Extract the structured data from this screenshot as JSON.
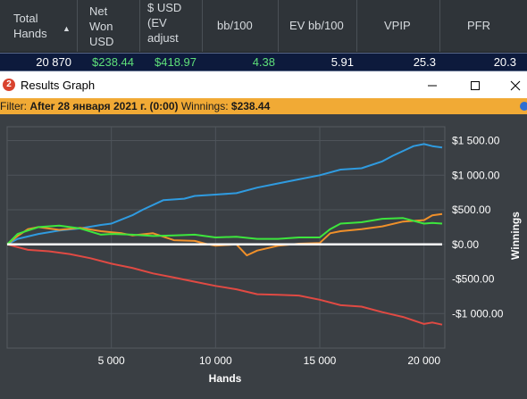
{
  "stats_table": {
    "headers": [
      "Total\nHands",
      "Net\nWon\nUSD",
      "$ USD\n(EV\nadjust",
      "bb/100",
      "EV bb/100",
      "VPIP",
      "PFR"
    ],
    "row": [
      "20 870",
      "$238.44",
      "$418.97",
      "4.38",
      "5.91",
      "25.3",
      "20.3"
    ],
    "colors": {
      "header_text": "#d7dbdf",
      "positive": "#5fe07a",
      "neutral": "#ffffff"
    }
  },
  "window": {
    "title": "Results Graph",
    "icon": "app-logo-icon",
    "buttons": [
      "minimize-icon",
      "maximize-icon",
      "close-icon"
    ]
  },
  "filter_bar": {
    "prefix": "Filter:",
    "filter": "After 28 января 2021 г. (0:00)",
    "winnings_label": "Winnings:",
    "winnings_value": "$238.44"
  },
  "chart_data": {
    "type": "line",
    "xlabel": "Hands",
    "ylabel": "Winnings",
    "xlim": [
      0,
      21000
    ],
    "ylim": [
      -1500,
      1700
    ],
    "x_ticks": [
      5000,
      10000,
      15000,
      20000
    ],
    "x_tick_labels": [
      "5 000",
      "10 000",
      "15 000",
      "20 000"
    ],
    "y_ticks": [
      1500,
      1000,
      500,
      0,
      -500,
      -1000
    ],
    "y_tick_labels": [
      "$1 500.00",
      "$1 000.00",
      "$500.00",
      "$0.00",
      "-$500.00",
      "-$1 000.00"
    ],
    "grid": true,
    "series": [
      {
        "color": "#2f9be0",
        "x": [
          0,
          500,
          1500,
          2500,
          3500,
          4500,
          5000,
          6000,
          6500,
          7500,
          8500,
          9000,
          10000,
          11000,
          12000,
          13000,
          14000,
          15000,
          16000,
          17000,
          18000,
          18500,
          19000,
          19500,
          20000,
          20400,
          20870
        ],
        "y": [
          0,
          80,
          150,
          200,
          230,
          280,
          300,
          420,
          500,
          640,
          660,
          700,
          720,
          740,
          820,
          880,
          940,
          1000,
          1080,
          1100,
          1200,
          1280,
          1350,
          1420,
          1450,
          1420,
          1400
        ]
      },
      {
        "color": "#f0902a",
        "x": [
          0,
          500,
          1000,
          1500,
          2500,
          3500,
          4500,
          5500,
          6000,
          7000,
          8000,
          9000,
          9500,
          10000,
          11000,
          11500,
          12000,
          13000,
          14000,
          15000,
          15500,
          16000,
          17000,
          18000,
          19000,
          20000,
          20400,
          20870
        ],
        "y": [
          0,
          120,
          220,
          250,
          210,
          240,
          190,
          160,
          130,
          160,
          60,
          50,
          10,
          -20,
          0,
          -160,
          -90,
          -20,
          10,
          20,
          160,
          190,
          220,
          260,
          330,
          350,
          420,
          440
        ]
      },
      {
        "color": "#3de63d",
        "x": [
          0,
          500,
          1500,
          2500,
          3500,
          4500,
          5000,
          6000,
          7000,
          8000,
          9000,
          10000,
          11000,
          12000,
          13000,
          14000,
          15000,
          15500,
          16000,
          17000,
          18000,
          19000,
          20000,
          20400,
          20870
        ],
        "y": [
          0,
          150,
          250,
          270,
          230,
          140,
          150,
          140,
          120,
          130,
          140,
          100,
          110,
          80,
          80,
          100,
          100,
          220,
          300,
          320,
          370,
          380,
          300,
          310,
          300
        ]
      },
      {
        "color": "#e04a43",
        "x": [
          0,
          1000,
          2000,
          3000,
          4000,
          5000,
          6000,
          7000,
          8000,
          9000,
          10000,
          11000,
          12000,
          13000,
          14000,
          15000,
          16000,
          17000,
          18000,
          19000,
          20000,
          20400,
          20870
        ],
        "y": [
          0,
          -80,
          -100,
          -140,
          -200,
          -280,
          -340,
          -420,
          -480,
          -540,
          -600,
          -650,
          -720,
          -730,
          -740,
          -800,
          -880,
          -900,
          -980,
          -1050,
          -1150,
          -1130,
          -1160
        ]
      },
      {
        "color": "#ffffff",
        "x": [
          0,
          20870
        ],
        "y": [
          0,
          0
        ]
      }
    ]
  }
}
